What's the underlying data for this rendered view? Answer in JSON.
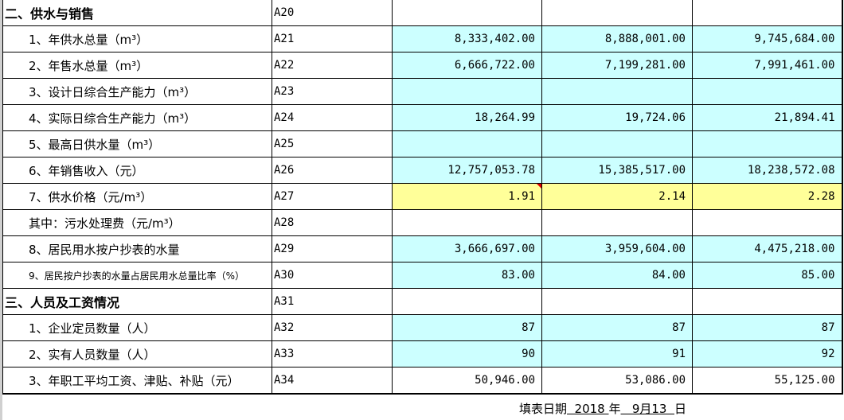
{
  "colors": {
    "input_cell": "#ccffff",
    "highlight_cell": "#ffff99",
    "comment_marker": "#e00000"
  },
  "rows": [
    {
      "label": "二、供水与销售",
      "code": "A20",
      "type": "section",
      "values": [
        "",
        "",
        ""
      ],
      "fill": "none"
    },
    {
      "label": "1、年供水总量（m³）",
      "code": "A21",
      "values": [
        "8,333,402.00",
        "8,888,001.00",
        "9,745,684.00"
      ],
      "fill": "cyan"
    },
    {
      "label": "2、年售水总量（m³）",
      "code": "A22",
      "values": [
        "6,666,722.00",
        "7,199,281.00",
        "7,991,461.00"
      ],
      "fill": "cyan"
    },
    {
      "label": "3、设计日综合生产能力（m³）",
      "code": "A23",
      "values": [
        "",
        "",
        ""
      ],
      "fill": "cyan"
    },
    {
      "label": "4、实际日综合生产能力（m³）",
      "code": "A24",
      "values": [
        "18,264.99",
        "19,724.06",
        "21,894.41"
      ],
      "fill": "cyan"
    },
    {
      "label": "5、最高日供水量（m³）",
      "code": "A25",
      "values": [
        "",
        "",
        ""
      ],
      "fill": "cyan"
    },
    {
      "label": "6、年销售收入（元）",
      "code": "A26",
      "values": [
        "12,757,053.78",
        "15,385,517.00",
        "18,238,572.08"
      ],
      "fill": "cyan"
    },
    {
      "label": "7、供水价格（元/m³）",
      "code": "A27",
      "values": [
        "1.91",
        "2.14",
        "2.28"
      ],
      "fill": "yellow"
    },
    {
      "label": "其中：污水处理费（元/m³）",
      "code": "A28",
      "values": [
        "",
        "",
        ""
      ],
      "fill": "none"
    },
    {
      "label": "8、居民用水按户抄表的水量",
      "code": "A29",
      "values": [
        "3,666,697.00",
        "3,959,604.00",
        "4,475,218.00"
      ],
      "fill": "cyan"
    },
    {
      "label": "9、居民按户抄表的水量占居民用水总量比率（%）",
      "code": "A30",
      "type": "small",
      "values": [
        "83.00",
        "84.00",
        "85.00"
      ],
      "fill": "cyan"
    },
    {
      "label": "三、人员及工资情况",
      "code": "A31",
      "type": "section",
      "values": [
        "",
        "",
        ""
      ],
      "fill": "none"
    },
    {
      "label": "1、企业定员数量（人）",
      "code": "A32",
      "values": [
        "87",
        "87",
        "87"
      ],
      "fill": "cyan"
    },
    {
      "label": "2、实有人员数量（人）",
      "code": "A33",
      "values": [
        "90",
        "91",
        "92"
      ],
      "fill": "cyan"
    },
    {
      "label": "3、年职工平均工资、津贴、补贴（元）",
      "code": "A34",
      "values": [
        "50,946.00",
        "53,086.00",
        "55,125.00"
      ],
      "fill": "none"
    }
  ],
  "footer": {
    "label": "填表日期",
    "year": "  2018 ",
    "year_unit": "年",
    "month_day": "   9月13  ",
    "day_unit": "日"
  }
}
